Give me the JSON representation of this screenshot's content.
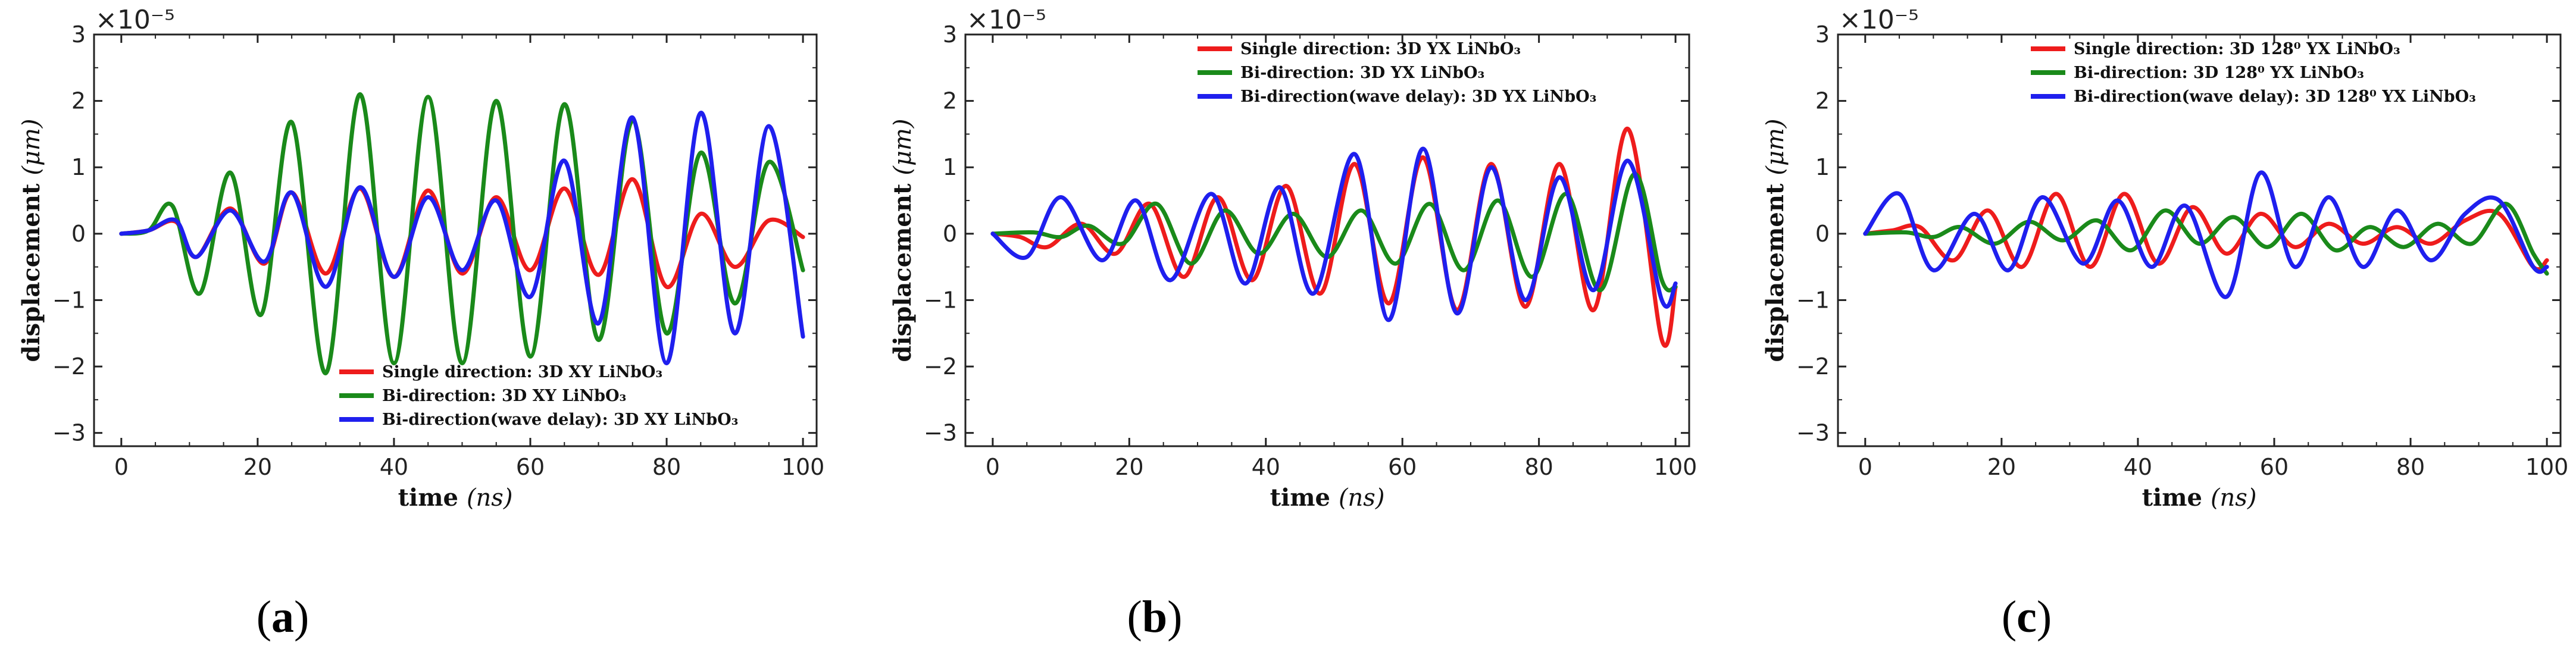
{
  "colors": {
    "single": "#ee1c1c",
    "bi": "#1a8a1a",
    "delay": "#1f1fee"
  },
  "chart_data": [
    {
      "type": "line",
      "panel_label": "(a)",
      "panel_letter": "a",
      "exponent_label": "×10⁻⁵",
      "xlabel": "time",
      "xlabel_unit": "(ns)",
      "ylabel": "displacement",
      "ylabel_unit": "(μm)",
      "xlim": [
        -4,
        102
      ],
      "ylim": [
        -3.2,
        3
      ],
      "xticks": [
        0,
        20,
        40,
        60,
        80,
        100
      ],
      "yticks": [
        -3,
        -2,
        -1,
        0,
        1,
        2,
        3
      ],
      "xtick_labels": [
        "0",
        "20",
        "40",
        "60",
        "80",
        "100"
      ],
      "ytick_labels": [
        "−3",
        "−2",
        "−1",
        "0",
        "1",
        "2",
        "3"
      ],
      "legend_position": "lower-right",
      "series": [
        {
          "name": "Single direction: 3D XY LiNbO₃",
          "color_key": "single",
          "x": [
            0,
            4,
            8,
            11,
            16,
            21,
            25,
            30,
            35,
            40,
            45,
            50,
            55,
            60,
            65,
            70,
            75,
            80,
            85,
            90,
            95,
            100
          ],
          "y": [
            0,
            0.05,
            0.18,
            -0.35,
            0.38,
            -0.45,
            0.62,
            -0.6,
            0.68,
            -0.65,
            0.65,
            -0.6,
            0.55,
            -0.55,
            0.68,
            -0.62,
            0.82,
            -0.8,
            0.3,
            -0.5,
            0.2,
            -0.05
          ]
        },
        {
          "name": "Bi-direction: 3D XY LiNbO₃",
          "color_key": "bi",
          "x": [
            0,
            4,
            7.5,
            11.5,
            16,
            20.5,
            25,
            30,
            35,
            40,
            45,
            50,
            55,
            60,
            65,
            70,
            75,
            80,
            85,
            90,
            95,
            100
          ],
          "y": [
            0,
            0.05,
            0.42,
            -0.9,
            0.92,
            -1.22,
            1.68,
            -2.1,
            2.1,
            -1.95,
            2.06,
            -1.95,
            2.0,
            -1.85,
            1.95,
            -1.6,
            1.7,
            -1.5,
            1.22,
            -1.05,
            1.08,
            -0.55
          ]
        },
        {
          "name": "Bi-direction(wave delay): 3D XY LiNbO₃",
          "color_key": "delay",
          "x": [
            0,
            4,
            8,
            11,
            16,
            21,
            25,
            30,
            35,
            40,
            45,
            50,
            55,
            60,
            65,
            70,
            75,
            80,
            85,
            90,
            95,
            100
          ],
          "y": [
            0,
            0.05,
            0.2,
            -0.35,
            0.35,
            -0.42,
            0.62,
            -0.8,
            0.7,
            -0.65,
            0.55,
            -0.55,
            0.5,
            -0.95,
            1.1,
            -1.35,
            1.75,
            -1.95,
            1.82,
            -1.5,
            1.62,
            -1.55
          ]
        }
      ]
    },
    {
      "type": "line",
      "panel_label": "(b)",
      "panel_letter": "b",
      "exponent_label": "×10⁻⁵",
      "xlabel": "time",
      "xlabel_unit": "(ns)",
      "ylabel": "displacement",
      "ylabel_unit": "(μm)",
      "xlim": [
        -4,
        102
      ],
      "ylim": [
        -3.2,
        3
      ],
      "xticks": [
        0,
        20,
        40,
        60,
        80,
        100
      ],
      "yticks": [
        -3,
        -2,
        -1,
        0,
        1,
        2,
        3
      ],
      "xtick_labels": [
        "0",
        "20",
        "40",
        "60",
        "80",
        "100"
      ],
      "ytick_labels": [
        "−3",
        "−2",
        "−1",
        "0",
        "1",
        "2",
        "3"
      ],
      "legend_position": "top-right",
      "series": [
        {
          "name": "Single direction: 3D YX LiNbO₃",
          "color_key": "single",
          "x": [
            0,
            4,
            8,
            13,
            18,
            23,
            28,
            33,
            38,
            43,
            48,
            53,
            58,
            63,
            68,
            73,
            78,
            83,
            88,
            93,
            98,
            100
          ],
          "y": [
            0,
            -0.05,
            -0.2,
            0.15,
            -0.3,
            0.45,
            -0.65,
            0.55,
            -0.7,
            0.72,
            -0.9,
            1.05,
            -1.05,
            1.15,
            -1.15,
            1.05,
            -1.1,
            1.05,
            -1.15,
            1.58,
            -1.6,
            -0.8
          ]
        },
        {
          "name": "Bi-direction: 3D YX LiNbO₃",
          "color_key": "bi",
          "x": [
            0,
            6,
            10,
            14,
            19,
            24,
            29,
            34,
            39,
            44,
            49,
            54,
            59,
            64,
            69,
            74,
            79,
            84,
            89,
            94,
            98,
            100
          ],
          "y": [
            0,
            0.02,
            -0.05,
            0.12,
            -0.15,
            0.45,
            -0.45,
            0.35,
            -0.3,
            0.3,
            -0.35,
            0.35,
            -0.45,
            0.45,
            -0.55,
            0.5,
            -0.65,
            0.6,
            -0.85,
            0.9,
            -0.7,
            -0.8
          ]
        },
        {
          "name": "Bi-direction(wave delay): 3D YX LiNbO₃",
          "color_key": "delay",
          "x": [
            0,
            5,
            10,
            16,
            21,
            26,
            32,
            37,
            42,
            47,
            53,
            58,
            63,
            68,
            73,
            78,
            83,
            88,
            93,
            98,
            100
          ],
          "y": [
            0,
            -0.35,
            0.55,
            -0.4,
            0.5,
            -0.7,
            0.6,
            -0.75,
            0.7,
            -0.9,
            1.2,
            -1.3,
            1.28,
            -1.2,
            1.0,
            -1.0,
            0.85,
            -0.85,
            1.1,
            -1.0,
            -0.75
          ]
        }
      ]
    },
    {
      "type": "line",
      "panel_label": "(c)",
      "panel_letter": "c",
      "exponent_label": "×10⁻⁵",
      "xlabel": "time",
      "xlabel_unit": "(ns)",
      "ylabel": "displacement",
      "ylabel_unit": "(μm)",
      "xlim": [
        -4,
        102
      ],
      "ylim": [
        -3.2,
        3
      ],
      "xticks": [
        0,
        20,
        40,
        60,
        80,
        100
      ],
      "yticks": [
        -3,
        -2,
        -1,
        0,
        1,
        2,
        3
      ],
      "xtick_labels": [
        "0",
        "20",
        "40",
        "60",
        "80",
        "100"
      ],
      "ytick_labels": [
        "−3",
        "−2",
        "−1",
        "0",
        "1",
        "2",
        "3"
      ],
      "legend_position": "top-right",
      "series": [
        {
          "name": "Single direction: 3D 128⁰ YX LiNbO₃",
          "color_key": "single",
          "x": [
            0,
            4,
            8,
            13,
            18,
            23,
            28,
            33,
            38,
            43,
            48,
            53,
            58,
            63,
            68,
            73,
            78,
            83,
            88,
            93,
            98,
            100
          ],
          "y": [
            0,
            0.05,
            0.1,
            -0.4,
            0.35,
            -0.5,
            0.6,
            -0.5,
            0.6,
            -0.45,
            0.4,
            -0.3,
            0.3,
            -0.2,
            0.15,
            -0.15,
            0.1,
            -0.15,
            0.2,
            0.3,
            -0.5,
            -0.4
          ]
        },
        {
          "name": "Bi-direction: 3D 128⁰ YX LiNbO₃",
          "color_key": "bi",
          "x": [
            0,
            6,
            10,
            14,
            19,
            24,
            29,
            34,
            39,
            44,
            49,
            54,
            59,
            64,
            69,
            74,
            79,
            84,
            89,
            94,
            98,
            100
          ],
          "y": [
            0,
            0.02,
            -0.05,
            0.1,
            -0.15,
            0.18,
            -0.1,
            0.2,
            -0.25,
            0.35,
            -0.15,
            0.25,
            -0.2,
            0.3,
            -0.25,
            0.1,
            -0.2,
            0.15,
            -0.15,
            0.45,
            -0.3,
            -0.6
          ]
        },
        {
          "name": "Bi-direction(wave delay): 3D 128⁰ YX LiNbO₃",
          "color_key": "delay",
          "x": [
            0,
            5,
            10,
            16,
            21,
            26,
            32,
            37,
            42,
            47,
            53,
            58,
            63,
            68,
            73,
            78,
            83,
            88,
            93,
            98,
            100
          ],
          "y": [
            0,
            0.6,
            -0.55,
            0.3,
            -0.55,
            0.55,
            -0.45,
            0.5,
            -0.5,
            0.42,
            -0.95,
            0.92,
            -0.5,
            0.55,
            -0.5,
            0.35,
            -0.4,
            0.3,
            0.5,
            -0.5,
            -0.5
          ]
        }
      ]
    }
  ]
}
